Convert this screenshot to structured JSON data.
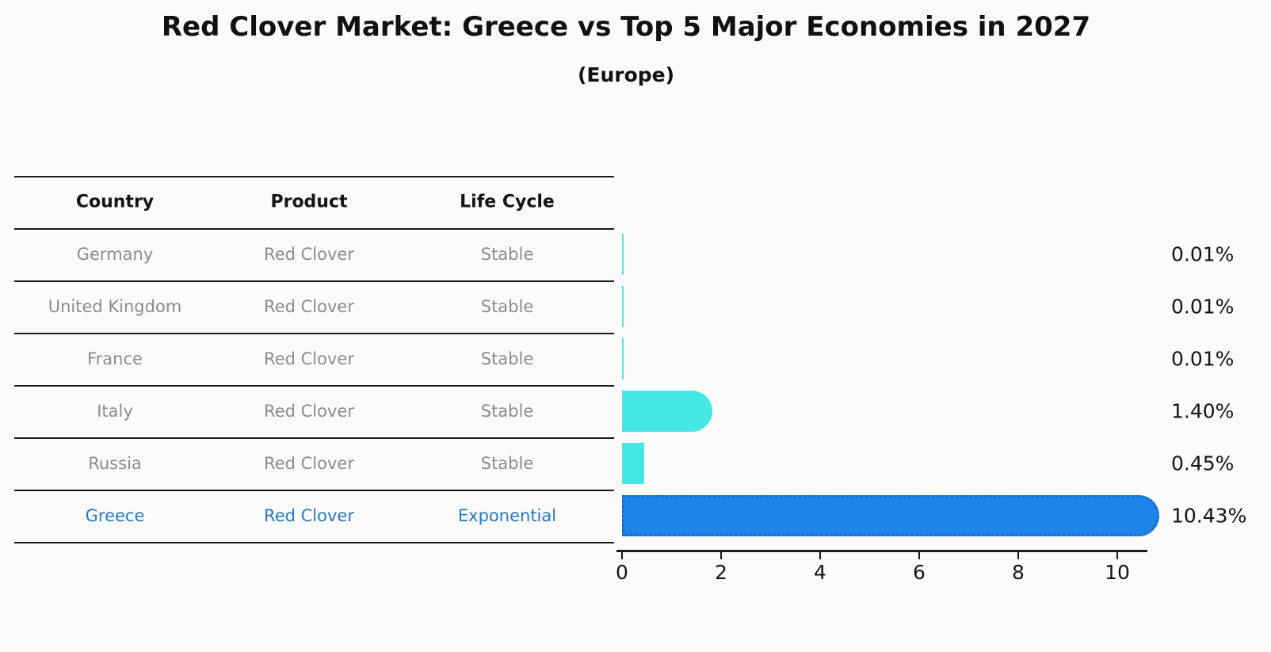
{
  "title": "Red Clover Market: Greece vs Top 5 Major Economies in 2027",
  "subtitle": "(Europe)",
  "table": {
    "headers": [
      "Country",
      "Product",
      "Life Cycle"
    ],
    "rows": [
      {
        "country": "Germany",
        "product": "Red Clover",
        "life_cycle": "Stable",
        "highlighted": false
      },
      {
        "country": "United Kingdom",
        "product": "Red Clover",
        "life_cycle": "Stable",
        "highlighted": false
      },
      {
        "country": "France",
        "product": "Red Clover",
        "life_cycle": "Stable",
        "highlighted": false
      },
      {
        "country": "Italy",
        "product": "Red Clover",
        "life_cycle": "Stable",
        "highlighted": false
      },
      {
        "country": "Russia",
        "product": "Red Clover",
        "life_cycle": "Stable",
        "highlighted": false
      },
      {
        "country": "Greece",
        "product": "Red Clover",
        "life_cycle": "Exponential",
        "highlighted": true
      }
    ]
  },
  "chart_data": {
    "type": "bar",
    "orientation": "horizontal",
    "title": "Red Clover Market: Greece vs Top 5 Major Economies in 2027",
    "subtitle": "(Europe)",
    "categories": [
      "Germany",
      "United Kingdom",
      "France",
      "Italy",
      "Russia",
      "Greece"
    ],
    "values": [
      0.01,
      0.01,
      0.01,
      1.4,
      0.45,
      10.43
    ],
    "value_labels": [
      "0.01%",
      "0.01%",
      "0.01%",
      "1.40%",
      "0.45%",
      "10.43%"
    ],
    "xlabel": "",
    "ylabel": "",
    "xlim": [
      0,
      10.6
    ],
    "x_ticks": [
      0,
      2,
      4,
      6,
      8,
      10
    ],
    "grid": false,
    "legend": "none",
    "base_color": "#46e8e6",
    "highlight_color": "#1e85e8",
    "highlight_border_color": "#1567cc",
    "highlight_index": 5
  },
  "colors": {
    "background": "#fbfbfb",
    "text_primary": "#111111",
    "text_muted": "#8c8c8c",
    "text_highlight": "#2878c2",
    "line": "#1a1a1a"
  }
}
